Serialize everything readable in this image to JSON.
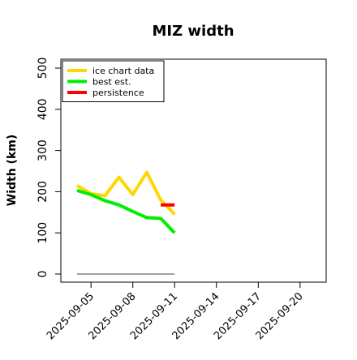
{
  "chart_data": {
    "type": "line",
    "title": "MIZ width",
    "ylabel": "Width (km)",
    "xlabel": "",
    "ylim": [
      0,
      500
    ],
    "y_ticks": [
      0,
      100,
      200,
      300,
      400,
      500
    ],
    "xlim": [
      "2025-09-04",
      "2025-09-21"
    ],
    "x_ticks": [
      "2025-09-05",
      "2025-09-08",
      "2025-09-11",
      "2025-09-14",
      "2025-09-17",
      "2025-09-20"
    ],
    "grid": false,
    "legend_position": "top-left",
    "series": [
      {
        "name": "ice chart data",
        "color": "#FFD700",
        "x": [
          "2025-09-04",
          "2025-09-05",
          "2025-09-06",
          "2025-09-07",
          "2025-09-08",
          "2025-09-09",
          "2025-09-10",
          "2025-09-11"
        ],
        "values": [
          215,
          195,
          190,
          235,
          193,
          247,
          180,
          145
        ]
      },
      {
        "name": "best est.",
        "color": "#00EE00",
        "x": [
          "2025-09-04",
          "2025-09-05",
          "2025-09-06",
          "2025-09-07",
          "2025-09-08",
          "2025-09-09",
          "2025-09-10",
          "2025-09-11"
        ],
        "values": [
          203,
          193,
          178,
          168,
          152,
          137,
          135,
          100
        ]
      },
      {
        "name": "persistence",
        "color": "#FF0000",
        "x": [
          "2025-09-10",
          "2025-09-11"
        ],
        "values": [
          168,
          168
        ]
      },
      {
        "name": "",
        "color": "#808080",
        "x": [
          "2025-09-04",
          "2025-09-11"
        ],
        "values": [
          0,
          0
        ]
      }
    ]
  }
}
